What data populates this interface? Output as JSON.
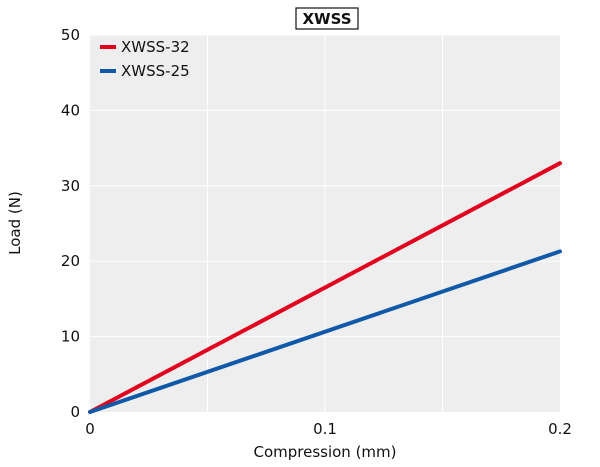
{
  "chart_data": {
    "type": "line",
    "title": "XWSS",
    "xlabel": "Compression (mm)",
    "ylabel": "Load (N)",
    "xlim": [
      0,
      0.2
    ],
    "ylim": [
      0,
      50
    ],
    "x_ticks": [
      "0",
      "0.1",
      "0.2"
    ],
    "y_ticks": [
      "0",
      "10",
      "20",
      "30",
      "40",
      "50"
    ],
    "grid": true,
    "legend_position": "top-left",
    "series": [
      {
        "name": "XWSS-32",
        "color": "#e1001e",
        "points": [
          [
            0,
            0
          ],
          [
            0.2,
            33
          ]
        ]
      },
      {
        "name": "XWSS-25",
        "color": "#1059a8",
        "points": [
          [
            0,
            0
          ],
          [
            0.2,
            21.3
          ]
        ]
      }
    ]
  }
}
